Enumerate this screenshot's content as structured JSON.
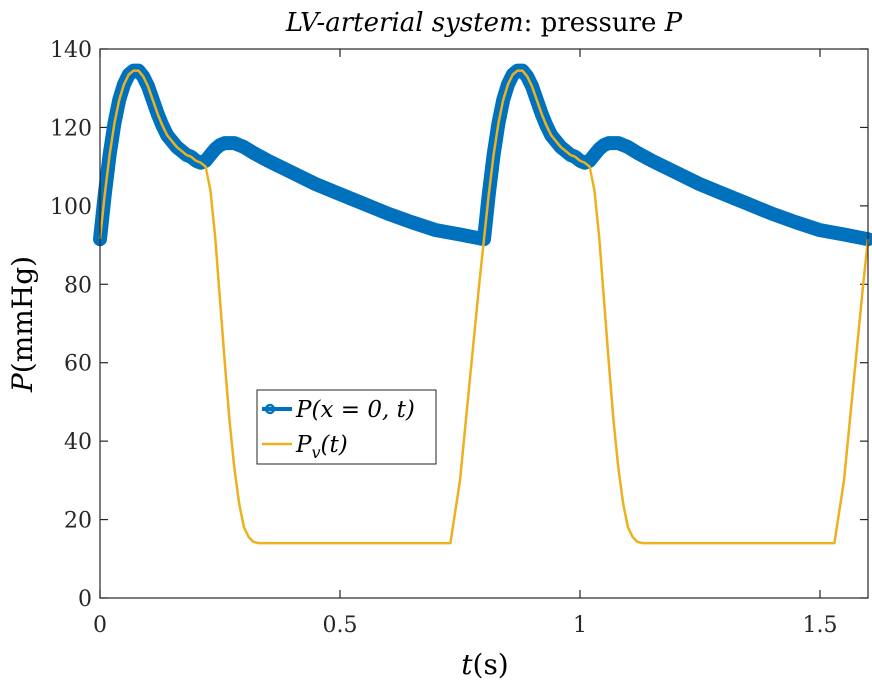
{
  "chart_data": {
    "type": "line",
    "title": {
      "italic": "LV-arterial system",
      "plain": ": pressure ",
      "symbol": "P"
    },
    "xlabel": {
      "symbol": "t",
      "unit": "(s)"
    },
    "ylabel": {
      "symbol": "P",
      "unit": "(mmHg)"
    },
    "xlim": [
      0,
      1.6
    ],
    "ylim": [
      0,
      140
    ],
    "xticks": [
      0,
      0.5,
      1,
      1.5
    ],
    "xtick_labels": [
      "0",
      "0.5",
      "1",
      "1.5"
    ],
    "yticks": [
      0,
      20,
      40,
      60,
      80,
      100,
      120,
      140
    ],
    "ytick_labels": [
      "0",
      "20",
      "40",
      "60",
      "80",
      "100",
      "120",
      "140"
    ],
    "grid": false,
    "legend_position": "center-left",
    "series": [
      {
        "name": "P(x = 0, t)",
        "legend": {
          "sym": "P",
          "args": "(x = 0, t)"
        },
        "color": "#0072BD",
        "marker": "circle",
        "x": [
          0,
          0.01,
          0.02,
          0.03,
          0.04,
          0.05,
          0.06,
          0.07,
          0.08,
          0.09,
          0.1,
          0.11,
          0.12,
          0.13,
          0.14,
          0.15,
          0.16,
          0.17,
          0.18,
          0.19,
          0.2,
          0.21,
          0.22,
          0.23,
          0.24,
          0.25,
          0.26,
          0.27,
          0.28,
          0.29,
          0.3,
          0.32,
          0.35,
          0.4,
          0.45,
          0.5,
          0.55,
          0.6,
          0.65,
          0.7,
          0.75,
          0.8,
          0.81,
          0.82,
          0.83,
          0.84,
          0.85,
          0.86,
          0.87,
          0.88,
          0.89,
          0.9,
          0.91,
          0.92,
          0.93,
          0.94,
          0.95,
          0.96,
          0.97,
          0.98,
          0.99,
          1.0,
          1.01,
          1.02,
          1.03,
          1.04,
          1.05,
          1.06,
          1.07,
          1.08,
          1.09,
          1.1,
          1.12,
          1.15,
          1.2,
          1.25,
          1.3,
          1.35,
          1.4,
          1.45,
          1.5,
          1.55,
          1.6
        ],
        "y": [
          91.5,
          103,
          113,
          121,
          127,
          131,
          133.5,
          134.5,
          134.5,
          133,
          130.5,
          127,
          123.5,
          120.5,
          118,
          116.5,
          115,
          114,
          113,
          112.5,
          111.5,
          111,
          111.5,
          113,
          114.5,
          115.5,
          116,
          116,
          116,
          115.5,
          115,
          113.5,
          111.5,
          108.5,
          105.5,
          103,
          100.5,
          98,
          95.8,
          93.8,
          92.7,
          91.5,
          103,
          113,
          121,
          127,
          131,
          133.5,
          134.5,
          134.5,
          133,
          130.5,
          127,
          123.5,
          120.5,
          118,
          116.5,
          115,
          114,
          113,
          112.5,
          111.5,
          111,
          111.5,
          113,
          114.5,
          115.5,
          116,
          116,
          116,
          115.5,
          115,
          113.5,
          111.5,
          108.5,
          105.5,
          103,
          100.5,
          98,
          95.8,
          93.8,
          92.7,
          91.5
        ]
      },
      {
        "name": "Pv(t)",
        "legend": {
          "sym": "P",
          "sub": "v",
          "args": "(t)"
        },
        "color": "#EDB120",
        "marker": "none",
        "x": [
          0,
          0.01,
          0.02,
          0.03,
          0.04,
          0.05,
          0.06,
          0.07,
          0.08,
          0.09,
          0.1,
          0.11,
          0.12,
          0.13,
          0.14,
          0.15,
          0.16,
          0.17,
          0.18,
          0.19,
          0.2,
          0.21,
          0.22,
          0.23,
          0.24,
          0.25,
          0.26,
          0.27,
          0.28,
          0.29,
          0.3,
          0.31,
          0.32,
          0.33,
          0.4,
          0.5,
          0.6,
          0.7,
          0.73,
          0.75,
          0.77,
          0.79,
          0.8,
          0.81,
          0.82,
          0.83,
          0.84,
          0.85,
          0.86,
          0.87,
          0.88,
          0.89,
          0.9,
          0.91,
          0.92,
          0.93,
          0.94,
          0.95,
          0.96,
          0.97,
          0.98,
          0.99,
          1.0,
          1.01,
          1.02,
          1.03,
          1.04,
          1.05,
          1.06,
          1.07,
          1.08,
          1.09,
          1.1,
          1.11,
          1.12,
          1.13,
          1.2,
          1.3,
          1.4,
          1.5,
          1.53,
          1.55,
          1.57,
          1.59,
          1.6
        ],
        "y": [
          91.5,
          103,
          113,
          121,
          127,
          131,
          133.5,
          134.5,
          134.5,
          133,
          130.5,
          127,
          123.5,
          120.5,
          118,
          116.5,
          115,
          114,
          113,
          112.5,
          111.5,
          111,
          110,
          104,
          92,
          76,
          60,
          45,
          33,
          24,
          18,
          15.5,
          14.3,
          14,
          14,
          14,
          14,
          14,
          14,
          30,
          55,
          80,
          91.5,
          103,
          113,
          121,
          127,
          131,
          133.5,
          134.5,
          134.5,
          133,
          130.5,
          127,
          123.5,
          120.5,
          118,
          116.5,
          115,
          114,
          113,
          112.5,
          111.5,
          111,
          110,
          104,
          92,
          76,
          60,
          45,
          33,
          24,
          18,
          15.5,
          14.3,
          14,
          14,
          14,
          14,
          14,
          14,
          30,
          55,
          80,
          91.5
        ]
      }
    ]
  }
}
